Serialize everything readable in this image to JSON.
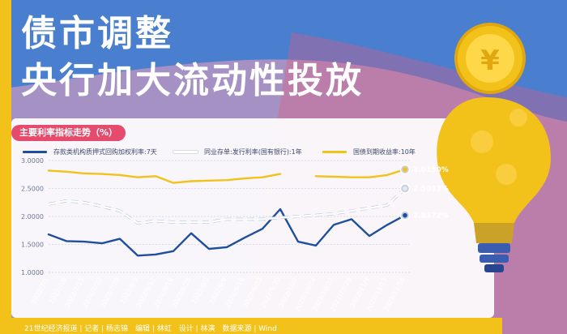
{
  "headline": {
    "line1": "债市调整",
    "line2": "央行加大流动性投放"
  },
  "subtitle": "主要利率指标走势（%）",
  "footer": "21世纪经济报道 | 记者 | 杨志锦　编辑 | 林虹　设计 | 林演　数据来源 | Wind",
  "colors": {
    "background": "#4a7fd0",
    "panel": "#ffffff",
    "frame": "#f2c21b",
    "accent": "#e54b6c"
  },
  "chart_data": {
    "type": "line",
    "x": [
      "2022/7/1",
      "2022/7/8",
      "2022/7/15",
      "2022/7/22",
      "2022/7/29",
      "2022/8/5",
      "2022/8/12",
      "2022/8/19",
      "2022/8/26",
      "2022/9/2",
      "2022/9/9",
      "2022/9/16",
      "2022/9/23",
      "2022/9/30",
      "2022/10/7",
      "2022/10/14",
      "2022/10/21",
      "2022/10/28",
      "2022/11/4",
      "2022/11/11",
      "2022/11/16"
    ],
    "ylim": [
      1.0,
      3.0
    ],
    "yticks": [
      "1.0000",
      "1.5000",
      "2.0000",
      "2.5000",
      "3.0000"
    ],
    "grid": true,
    "legend_position": "top",
    "series": [
      {
        "name": "存款类机构质押式回购加权利率:7天",
        "color": "#1f4f9c",
        "style": "solid",
        "values": [
          1.68,
          1.56,
          1.55,
          1.52,
          1.6,
          1.3,
          1.32,
          1.38,
          1.7,
          1.42,
          1.45,
          1.62,
          1.78,
          2.13,
          1.55,
          1.48,
          1.85,
          1.95,
          1.65,
          1.85,
          2.02
        ]
      },
      {
        "name": "同业存单:发行利率(国有银行):1年",
        "color": "#ffffff",
        "style": "dashed",
        "values": [
          2.22,
          2.28,
          2.25,
          2.18,
          2.1,
          1.88,
          1.92,
          1.9,
          1.9,
          1.9,
          1.95,
          1.95,
          1.95,
          1.98,
          2.0,
          2.02,
          2.05,
          2.1,
          2.15,
          2.2,
          2.5
        ]
      },
      {
        "name": "国债到期收益率:10年",
        "color": "#f2c21b",
        "style": "solid",
        "values": [
          2.82,
          2.8,
          2.77,
          2.76,
          2.74,
          2.7,
          2.72,
          2.6,
          2.63,
          2.64,
          2.65,
          2.68,
          2.7,
          2.76,
          null,
          2.72,
          2.71,
          2.7,
          2.7,
          2.74,
          2.84
        ]
      }
    ],
    "end_labels": [
      "2.8372%",
      "2.5033%",
      "2.0150%"
    ],
    "xlabel": "",
    "ylabel": ""
  }
}
